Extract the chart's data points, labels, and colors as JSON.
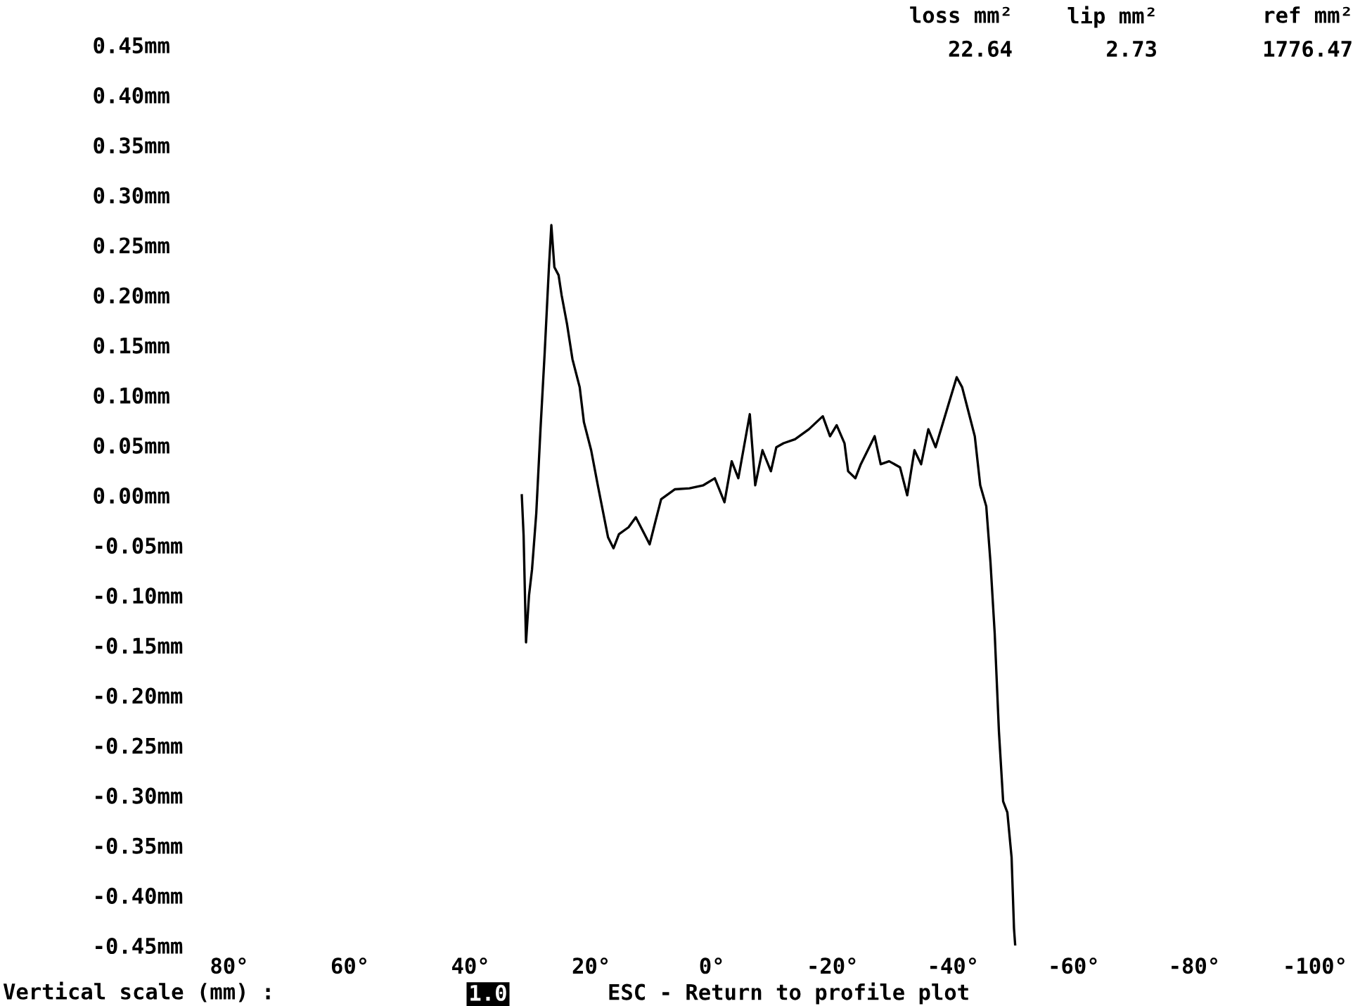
{
  "chart_data": {
    "type": "line",
    "x": [
      31.5,
      31.2,
      30.8,
      30.3,
      29.8,
      29.1,
      28.4,
      27.7,
      27.0,
      26.6,
      26.1,
      25.4,
      24.9,
      24.0,
      23.1,
      21.9,
      21.2,
      20.0,
      18.9,
      17.2,
      16.3,
      15.4,
      13.8,
      12.6,
      11.4,
      10.3,
      9.3,
      8.4,
      6.1,
      3.7,
      1.4,
      -0.5,
      -2.1,
      -3.3,
      -4.4,
      -6.3,
      -7.2,
      -8.4,
      -9.8,
      -10.7,
      -11.9,
      -13.8,
      -16.1,
      -18.4,
      -19.6,
      -20.7,
      -22.0,
      -22.6,
      -23.8,
      -24.7,
      -26.1,
      -27.0,
      -28.0,
      -29.4,
      -31.2,
      -32.4,
      -33.6,
      -34.7,
      -35.9,
      -37.1,
      -38.2,
      -39.4,
      -40.6,
      -41.5,
      -42.4,
      -43.6,
      -44.5,
      -45.5,
      -46.2,
      -46.9,
      -47.6,
      -48.3,
      -49.0,
      -49.7,
      -50.1,
      -50.3
    ],
    "series": [
      {
        "color": "#000000",
        "values": [
          0.0,
          -0.04,
          -0.147,
          -0.1,
          -0.074,
          -0.018,
          0.066,
          0.143,
          0.228,
          0.27,
          0.228,
          0.22,
          0.2,
          0.171,
          0.136,
          0.108,
          0.073,
          0.045,
          0.01,
          -0.042,
          -0.053,
          -0.039,
          -0.032,
          -0.022,
          -0.036,
          -0.049,
          -0.025,
          -0.004,
          0.006,
          0.007,
          0.01,
          0.017,
          -0.007,
          0.034,
          0.017,
          0.081,
          0.01,
          0.045,
          0.024,
          0.048,
          0.052,
          0.056,
          0.066,
          0.079,
          0.059,
          0.07,
          0.052,
          0.024,
          0.017,
          0.031,
          0.048,
          0.059,
          0.031,
          0.034,
          0.028,
          0.0,
          0.045,
          0.031,
          0.066,
          0.048,
          0.07,
          0.094,
          0.118,
          0.108,
          0.087,
          0.059,
          0.01,
          -0.011,
          -0.067,
          -0.138,
          -0.236,
          -0.306,
          -0.317,
          -0.362,
          -0.433,
          -0.45
        ]
      }
    ],
    "xlim": [
      80,
      -100
    ],
    "xticks": [
      {
        "value": 80,
        "label": "80°"
      },
      {
        "value": 60,
        "label": "60°"
      },
      {
        "value": 40,
        "label": "40°"
      },
      {
        "value": 20,
        "label": "20°"
      },
      {
        "value": 0,
        "label": "0°"
      },
      {
        "value": -20,
        "label": "-20°"
      },
      {
        "value": -40,
        "label": "-40°"
      },
      {
        "value": -60,
        "label": "-60°"
      },
      {
        "value": -80,
        "label": "-80°"
      },
      {
        "value": -100,
        "label": "-100°"
      }
    ],
    "ylim": [
      -0.45,
      0.45
    ],
    "yticks": [
      {
        "value": 0.45,
        "label": "0.45mm"
      },
      {
        "value": 0.4,
        "label": "0.40mm"
      },
      {
        "value": 0.35,
        "label": "0.35mm"
      },
      {
        "value": 0.3,
        "label": "0.30mm"
      },
      {
        "value": 0.25,
        "label": "0.25mm"
      },
      {
        "value": 0.2,
        "label": "0.20mm"
      },
      {
        "value": 0.15,
        "label": "0.15mm"
      },
      {
        "value": 0.1,
        "label": "0.10mm"
      },
      {
        "value": 0.05,
        "label": "0.05mm"
      },
      {
        "value": 0,
        "label": "0.00mm"
      },
      {
        "value": -0.05,
        "label": "-0.05mm"
      },
      {
        "value": -0.1,
        "label": "-0.10mm"
      },
      {
        "value": -0.15,
        "label": "-0.15mm"
      },
      {
        "value": -0.2,
        "label": "-0.20mm"
      },
      {
        "value": -0.25,
        "label": "-0.25mm"
      },
      {
        "value": -0.3,
        "label": "-0.30mm"
      },
      {
        "value": -0.35,
        "label": "-0.35mm"
      },
      {
        "value": -0.4,
        "label": "-0.40mm"
      },
      {
        "value": -0.45,
        "label": "-0.45mm"
      }
    ],
    "grid": false,
    "marker": "none",
    "line_style": "solid",
    "annotations": [
      "loss mm²",
      "lip mm²",
      "ref mm²",
      "22.64",
      "2.73",
      "1776.47",
      "Vertical scale (mm) :",
      "1.0",
      "ESC - Return to profile plot"
    ]
  }
}
